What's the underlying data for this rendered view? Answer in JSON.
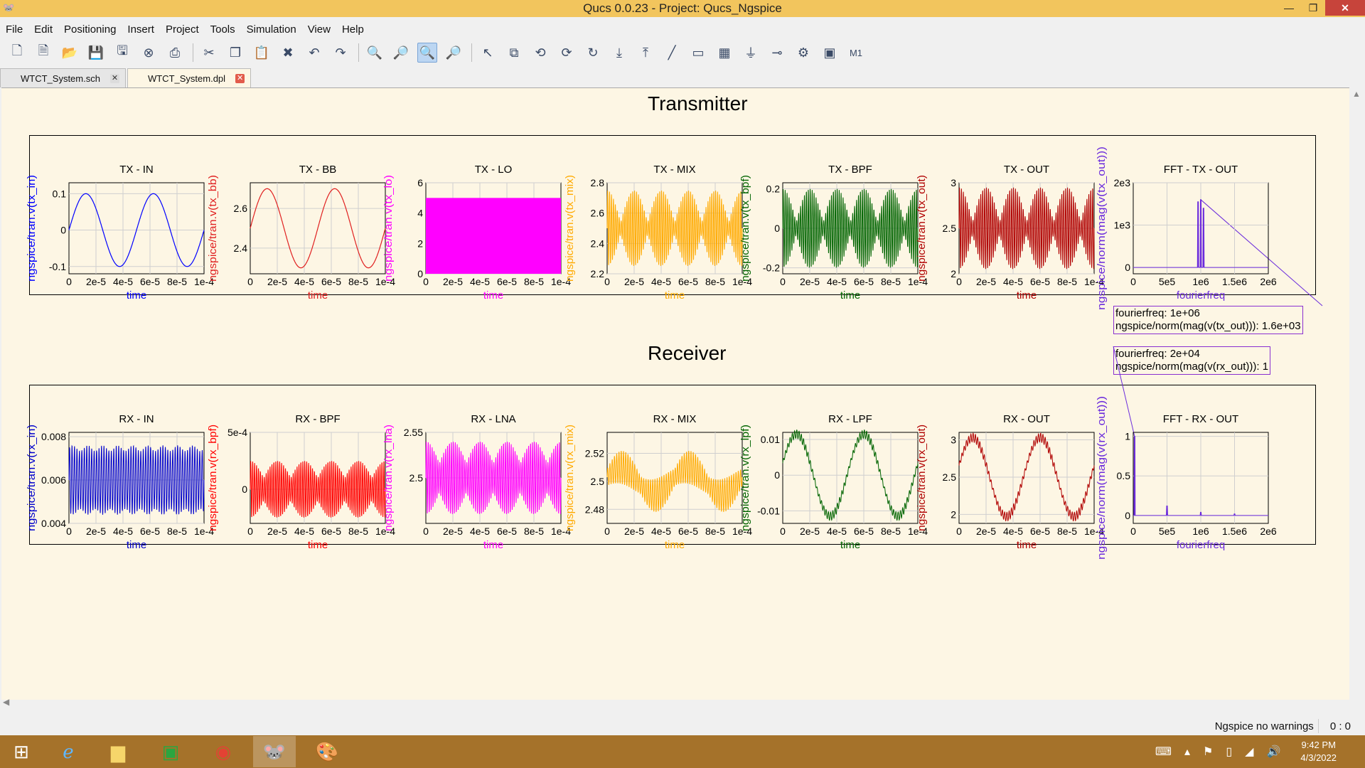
{
  "window": {
    "title": "Qucs 0.0.23 - Project: Qucs_Ngspice",
    "minimize": "—",
    "maximize": "❐",
    "close": "✕"
  },
  "menu": [
    "File",
    "Edit",
    "Positioning",
    "Insert",
    "Project",
    "Tools",
    "Simulation",
    "View",
    "Help"
  ],
  "toolbar": {
    "groups": [
      [
        {
          "name": "new-document-icon",
          "glyph": "🗋"
        },
        {
          "name": "new-text-icon",
          "glyph": "🗎"
        },
        {
          "name": "open-icon",
          "glyph": "📂"
        },
        {
          "name": "save-icon",
          "glyph": "💾"
        },
        {
          "name": "save-all-icon",
          "glyph": "🖫"
        },
        {
          "name": "close-document-icon",
          "glyph": "⊗"
        },
        {
          "name": "print-icon",
          "glyph": "⎙"
        }
      ],
      [
        {
          "name": "cut-icon",
          "glyph": "✂"
        },
        {
          "name": "copy-icon",
          "glyph": "❐"
        },
        {
          "name": "paste-icon",
          "glyph": "📋"
        },
        {
          "name": "delete-icon",
          "glyph": "✖"
        },
        {
          "name": "undo-icon",
          "glyph": "↶"
        },
        {
          "name": "redo-icon",
          "glyph": "↷"
        }
      ],
      [
        {
          "name": "zoom-fit-icon",
          "glyph": "🔍"
        },
        {
          "name": "zoom-in-icon",
          "glyph": "🔎"
        },
        {
          "name": "zoom-selection-icon",
          "glyph": "🔍",
          "active": true
        },
        {
          "name": "zoom-out-icon",
          "glyph": "🔎"
        }
      ],
      [
        {
          "name": "select-icon",
          "glyph": "↖"
        },
        {
          "name": "mirror-icon",
          "glyph": "⧉"
        },
        {
          "name": "rotate-icon",
          "glyph": "⟲"
        },
        {
          "name": "activate-icon",
          "glyph": "⟳"
        },
        {
          "name": "rotate-cw-icon",
          "glyph": "↻"
        },
        {
          "name": "go-into-icon",
          "glyph": "⤓"
        },
        {
          "name": "go-up-icon",
          "glyph": "⤒"
        },
        {
          "name": "wire-icon",
          "glyph": "╱"
        },
        {
          "name": "name-label-icon",
          "glyph": "▭"
        },
        {
          "name": "equation-icon",
          "glyph": "▦"
        },
        {
          "name": "ground-icon",
          "glyph": "⏚"
        },
        {
          "name": "port-icon",
          "glyph": "⊸"
        },
        {
          "name": "simulate-icon",
          "glyph": "⚙"
        },
        {
          "name": "view-data-icon",
          "glyph": "▣"
        },
        {
          "name": "marker-icon",
          "glyph": "M1"
        }
      ]
    ]
  },
  "tabs": [
    {
      "label": "WTCT_System.sch",
      "active": false,
      "close": "✕"
    },
    {
      "label": "WTCT_System.dpl",
      "active": true,
      "close": "✕"
    }
  ],
  "sections": {
    "transmitter": "Transmitter",
    "receiver": "Receiver"
  },
  "tooltips": {
    "tx": {
      "line1": "fourierfreq: 1e+06",
      "line2": "ngspice/norm(mag(v(tx_out))): 1.6e+03"
    },
    "rx": {
      "line1": "fourierfreq: 2e+04",
      "line2": "ngspice/norm(mag(v(rx_out))): 1"
    }
  },
  "status": {
    "simulator": "Ngspice",
    "warnings": "no warnings",
    "cursor": "0 : 0"
  },
  "taskbar": {
    "time": "9:42 PM",
    "date": "4/3/2022"
  },
  "chart_data": [
    {
      "type": "line",
      "title": "TX - IN",
      "ylabel": "ngspice/tran.v(tx_in)",
      "xlabel": "time",
      "color": "#0000ff",
      "xticks": [
        "0",
        "2e-5",
        "4e-5",
        "6e-5",
        "8e-5",
        "1e-4"
      ],
      "xlim": [
        0,
        0.0001
      ],
      "yticks": [
        {
          "v": -0.1,
          "label": "-0.1"
        },
        {
          "v": 0,
          "label": "0"
        },
        {
          "v": 0.1,
          "label": "0.1"
        }
      ],
      "ylim": [
        -0.12,
        0.13
      ],
      "signal": "sine",
      "amplitude": 0.1,
      "offset": 0,
      "cycles": 2,
      "phase": 0
    },
    {
      "type": "line",
      "title": "TX - BB",
      "ylabel": "ngspice/tran.v(tx_bb)",
      "xlabel": "time",
      "color": "#e02020",
      "xticks": [
        "0",
        "2e-5",
        "4e-5",
        "6e-5",
        "8e-5",
        "1e-4"
      ],
      "xlim": [
        0,
        0.0001
      ],
      "yticks": [
        {
          "v": 2.4,
          "label": "2.4"
        },
        {
          "v": 2.6,
          "label": "2.6"
        }
      ],
      "ylim": [
        2.27,
        2.73
      ],
      "signal": "sine",
      "amplitude": 0.2,
      "offset": 2.5,
      "cycles": 2,
      "phase": 0
    },
    {
      "type": "area",
      "title": "TX - LO",
      "ylabel": "ngspice/tran.v(tx_lo)",
      "xlabel": "time",
      "color": "#ff00ff",
      "xticks": [
        "0",
        "2e-5",
        "4e-5",
        "6e-5",
        "8e-5",
        "1e-4"
      ],
      "xlim": [
        0,
        0.0001
      ],
      "yticks": [
        {
          "v": 0,
          "label": "0"
        },
        {
          "v": 2,
          "label": "2"
        },
        {
          "v": 4,
          "label": "4"
        },
        {
          "v": 6,
          "label": "6"
        }
      ],
      "ylim": [
        0,
        6
      ],
      "signal": "square",
      "low": 0,
      "high": 5
    },
    {
      "type": "line",
      "title": "TX - MIX",
      "ylabel": "ngspice/tran.v(tx_mix)",
      "xlabel": "time",
      "color": "#ffaa00",
      "xticks": [
        "0",
        "2e-5",
        "4e-5",
        "6e-5",
        "8e-5",
        "1e-4"
      ],
      "xlim": [
        0,
        0.0001
      ],
      "yticks": [
        {
          "v": 2.2,
          "label": "2.2"
        },
        {
          "v": 2.4,
          "label": "2.4"
        },
        {
          "v": 2.6,
          "label": "2.6"
        },
        {
          "v": 2.8,
          "label": "2.8"
        }
      ],
      "ylim": [
        2.2,
        2.8
      ],
      "signal": "modulated",
      "offset": 2.5,
      "amplitude": 0.25,
      "carrier": 70,
      "envelope": "dsb"
    },
    {
      "type": "line",
      "title": "TX - BPF",
      "ylabel": "ngspice/tran.v(tx_bpf)",
      "xlabel": "time",
      "color": "#006400",
      "xticks": [
        "0",
        "2e-5",
        "4e-5",
        "6e-5",
        "8e-5",
        "1e-4"
      ],
      "xlim": [
        0,
        0.0001
      ],
      "yticks": [
        {
          "v": -0.2,
          "label": "-0.2"
        },
        {
          "v": 0,
          "label": "0"
        },
        {
          "v": 0.2,
          "label": "0.2"
        }
      ],
      "ylim": [
        -0.23,
        0.23
      ],
      "signal": "modulated",
      "offset": 0,
      "amplitude": 0.2,
      "carrier": 70,
      "envelope": "dsb"
    },
    {
      "type": "line",
      "title": "TX - OUT",
      "ylabel": "ngspice/tran.v(tx_out)",
      "xlabel": "time",
      "color": "#b00000",
      "xticks": [
        "0",
        "2e-5",
        "4e-5",
        "6e-5",
        "8e-5",
        "1e-4"
      ],
      "xlim": [
        0,
        0.0001
      ],
      "yticks": [
        {
          "v": 2,
          "label": "2"
        },
        {
          "v": 2.5,
          "label": "2.5"
        },
        {
          "v": 3,
          "label": "3"
        }
      ],
      "ylim": [
        2,
        3
      ],
      "signal": "modulated",
      "offset": 2.5,
      "amplitude": 0.45,
      "carrier": 70,
      "envelope": "dsb"
    },
    {
      "type": "line",
      "title": "FFT - TX - OUT",
      "ylabel": "ngspice/norm(mag(v(tx_out)))",
      "xlabel": "fourierfreq",
      "color": "#6b2bdc",
      "xticks": [
        "0",
        "5e5",
        "1e6",
        "1.5e6",
        "2e6"
      ],
      "xlim": [
        0,
        2000000
      ],
      "yticks": [
        {
          "v": 0,
          "label": "0"
        },
        {
          "v": 1000,
          "label": "1e3"
        },
        {
          "v": 2000,
          "label": "2e3"
        }
      ],
      "ylim": [
        -150,
        2000
      ],
      "signal": "peaks",
      "peaks": [
        {
          "x": 960000,
          "y": 1550
        },
        {
          "x": 1000000,
          "y": 1600
        },
        {
          "x": 1040000,
          "y": 1400
        }
      ],
      "marker": {
        "x": 1000000,
        "y": 1600
      }
    },
    {
      "type": "line",
      "title": "RX - IN",
      "ylabel": "ngspice/tran.v(rx_in)",
      "xlabel": "time",
      "color": "#0000cc",
      "xticks": [
        "0",
        "2e-5",
        "4e-5",
        "6e-5",
        "8e-5",
        "1e-4"
      ],
      "xlim": [
        0,
        0.0001
      ],
      "yticks": [
        {
          "v": 0.004,
          "label": "0.004"
        },
        {
          "v": 0.006,
          "label": "0.006"
        },
        {
          "v": 0.008,
          "label": "0.008"
        }
      ],
      "ylim": [
        0.004,
        0.0082
      ],
      "signal": "modulated",
      "offset": 0.006,
      "amplitude": 0.0016,
      "carrier": 55,
      "envelope": "flat"
    },
    {
      "type": "line",
      "title": "RX - BPF",
      "ylabel": "ngspice/tran.v(rx_bpf)",
      "xlabel": "time",
      "color": "#ff0000",
      "xticks": [
        "0",
        "2e-5",
        "4e-5",
        "6e-5",
        "8e-5",
        "1e-4"
      ],
      "xlim": [
        0,
        0.0001
      ],
      "yticks": [
        {
          "v": 0,
          "label": "0"
        },
        {
          "v": 0.0005,
          "label": "5e-4"
        }
      ],
      "ylim": [
        -0.0003,
        0.0005
      ],
      "signal": "modulated",
      "offset": 0,
      "amplitude": 0.00025,
      "carrier": 70,
      "envelope": "rx"
    },
    {
      "type": "line",
      "title": "RX - LNA",
      "ylabel": "ngspice/tran.v(rx_lna)",
      "xlabel": "time",
      "color": "#ff00ff",
      "xticks": [
        "0",
        "2e-5",
        "4e-5",
        "6e-5",
        "8e-5",
        "1e-4"
      ],
      "xlim": [
        0,
        0.0001
      ],
      "yticks": [
        {
          "v": 2.5,
          "label": "2.5"
        },
        {
          "v": 2.55,
          "label": "2.55"
        }
      ],
      "ylim": [
        2.45,
        2.55
      ],
      "signal": "modulated",
      "offset": 2.5,
      "amplitude": 0.04,
      "carrier": 70,
      "envelope": "rx"
    },
    {
      "type": "line",
      "title": "RX - MIX",
      "ylabel": "ngspice/tran.v(rx_mix)",
      "xlabel": "time",
      "color": "#ffaa00",
      "xticks": [
        "0",
        "2e-5",
        "4e-5",
        "6e-5",
        "8e-5",
        "1e-4"
      ],
      "xlim": [
        0,
        0.0001
      ],
      "yticks": [
        {
          "v": 2.48,
          "label": "2.48"
        },
        {
          "v": 2.5,
          "label": "2.5"
        },
        {
          "v": 2.52,
          "label": "2.52"
        }
      ],
      "ylim": [
        2.47,
        2.535
      ],
      "signal": "mixsine",
      "offset": 2.5,
      "amplitude": 0.01,
      "noise": 0.012,
      "carrier": 60,
      "cycles": 2
    },
    {
      "type": "line",
      "title": "RX - LPF",
      "ylabel": "ngspice/tran.v(rx_lpf)",
      "xlabel": "time",
      "color": "#006400",
      "xticks": [
        "0",
        "2e-5",
        "4e-5",
        "6e-5",
        "8e-5",
        "1e-4"
      ],
      "xlim": [
        0,
        0.0001
      ],
      "yticks": [
        {
          "v": -0.01,
          "label": "-0.01"
        },
        {
          "v": 0,
          "label": "0"
        },
        {
          "v": 0.01,
          "label": "0.01"
        }
      ],
      "ylim": [
        -0.0135,
        0.012
      ],
      "signal": "mixsine",
      "offset": 0,
      "amplitude": 0.0115,
      "noise": 0.0012,
      "carrier": 60,
      "cycles": 2
    },
    {
      "type": "line",
      "title": "RX - OUT",
      "ylabel": "ngspice/tran.v(rx_out)",
      "xlabel": "time",
      "color": "#b00000",
      "xticks": [
        "0",
        "2e-5",
        "4e-5",
        "6e-5",
        "8e-5",
        "1e-4"
      ],
      "xlim": [
        0,
        0.0001
      ],
      "yticks": [
        {
          "v": 2,
          "label": "2"
        },
        {
          "v": 2.5,
          "label": "2.5"
        },
        {
          "v": 3,
          "label": "3"
        }
      ],
      "ylim": [
        1.88,
        3.1
      ],
      "signal": "mixsine",
      "offset": 2.5,
      "amplitude": 0.53,
      "noise": 0.06,
      "carrier": 60,
      "cycles": 2
    },
    {
      "type": "line",
      "title": "FFT - RX - OUT",
      "ylabel": "ngspice/norm(mag(v(rx_out)))",
      "xlabel": "fourierfreq",
      "color": "#6b2bdc",
      "xticks": [
        "0",
        "5e5",
        "1e6",
        "1.5e6",
        "2e6"
      ],
      "xlim": [
        0,
        2000000
      ],
      "yticks": [
        {
          "v": 0,
          "label": "0"
        },
        {
          "v": 0.5,
          "label": "0.5"
        },
        {
          "v": 1,
          "label": "1"
        }
      ],
      "ylim": [
        -0.1,
        1.05
      ],
      "signal": "peaks",
      "peaks": [
        {
          "x": 20000,
          "y": 1
        },
        {
          "x": 500000,
          "y": 0.12
        },
        {
          "x": 1000000,
          "y": 0.04
        },
        {
          "x": 1500000,
          "y": 0.02
        }
      ],
      "marker": {
        "x": 20000,
        "y": 1
      }
    }
  ]
}
